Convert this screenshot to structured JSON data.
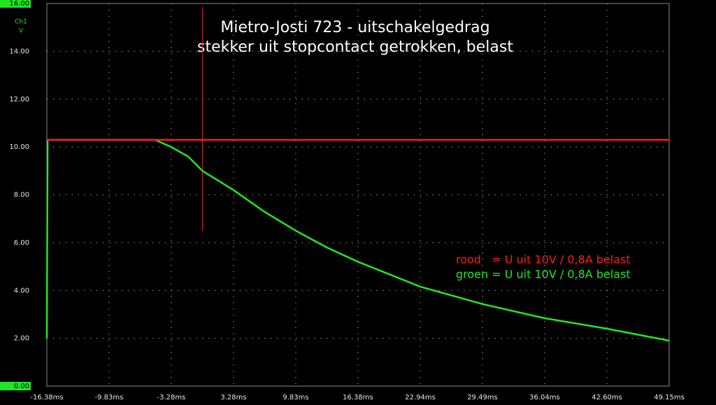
{
  "chart_data": {
    "type": "line",
    "title": [
      "Mietro-Josti 723 - uitschakelgedrag",
      "stekker uit stopcontact getrokken, belast"
    ],
    "y_channel": "Ch1",
    "y_unit": "V",
    "xlim": [
      -16.38,
      49.15
    ],
    "xticks": [
      {
        "value": -16.38,
        "label": "-16.38ms"
      },
      {
        "value": -9.83,
        "label": "-9.83ms"
      },
      {
        "value": -3.28,
        "label": "-3.28ms"
      },
      {
        "value": 3.28,
        "label": "3.28ms"
      },
      {
        "value": 9.83,
        "label": "9.83ms"
      },
      {
        "value": 16.38,
        "label": "16.38ms"
      },
      {
        "value": 22.94,
        "label": "22.94ms"
      },
      {
        "value": 29.49,
        "label": "29.49ms"
      },
      {
        "value": 36.04,
        "label": "36.04ms"
      },
      {
        "value": 42.6,
        "label": "42.60ms"
      },
      {
        "value": 49.15,
        "label": "49.15ms"
      }
    ],
    "ylim": [
      0,
      16
    ],
    "yticks": [
      {
        "value": 0,
        "label": "0.00"
      },
      {
        "value": 2,
        "label": "2.00"
      },
      {
        "value": 4,
        "label": "4.00"
      },
      {
        "value": 6,
        "label": "6.00"
      },
      {
        "value": 8,
        "label": "8.00"
      },
      {
        "value": 10,
        "label": "10.00"
      },
      {
        "value": 12,
        "label": "12.00"
      },
      {
        "value": 14,
        "label": "14.00"
      },
      {
        "value": 16,
        "label": "16.00"
      }
    ],
    "grid": true,
    "cursor_x": 0,
    "cursor_color": "#e02020",
    "series": [
      {
        "name": "rood   = U uit 10V / 0,8A belast",
        "color": "#ff1a1a",
        "x": [
          -16.38,
          -16.3,
          0,
          49.15
        ],
        "values": [
          10.3,
          10.3,
          10.3,
          10.3
        ]
      },
      {
        "name": "groen = U uit 10V / 0,8A belast",
        "color": "#22e622",
        "x": [
          -16.38,
          -16.3,
          -5.0,
          -3.28,
          -1.5,
          0,
          3.28,
          6.5,
          9.83,
          13.1,
          16.38,
          22.94,
          29.49,
          36.04,
          42.6,
          49.15
        ],
        "values": [
          2.0,
          10.3,
          10.3,
          10.0,
          9.6,
          9.0,
          8.2,
          7.3,
          6.5,
          5.8,
          5.2,
          4.16,
          3.43,
          2.84,
          2.4,
          1.9
        ]
      }
    ]
  }
}
